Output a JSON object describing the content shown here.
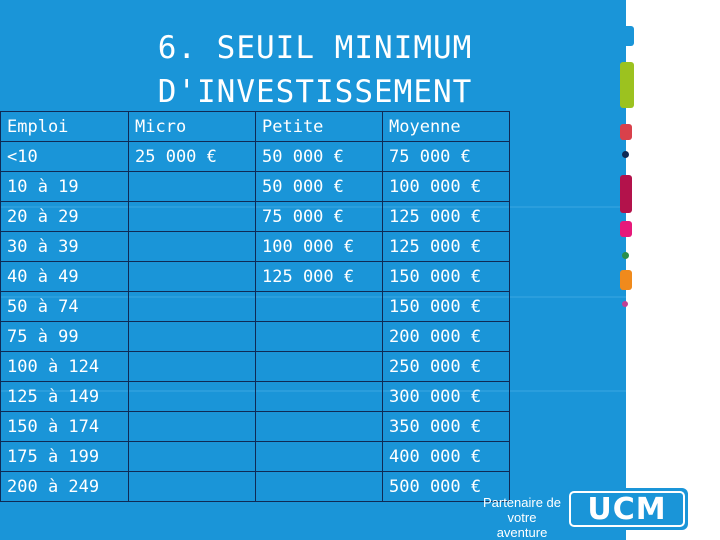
{
  "title_line1": "6. SEUIL MINIMUM",
  "title_line2": "D'INVESTISSEMENT",
  "table": {
    "headers": [
      "Emploi",
      "Micro",
      "Petite",
      "Moyenne"
    ],
    "rows": [
      [
        "<10",
        "25 000 €",
        "50 000 €",
        "75 000 €"
      ],
      [
        "10 à 19",
        "",
        "50 000 €",
        "100 000 €"
      ],
      [
        "20 à 29",
        "",
        "75 000 €",
        "125 000 €"
      ],
      [
        "30 à 39",
        "",
        "100 000 €",
        "125 000 €"
      ],
      [
        "40 à 49",
        "",
        "125 000 €",
        "150 000 €"
      ],
      [
        "50 à 74",
        "",
        "",
        "150 000 €"
      ],
      [
        "75 à 99",
        "",
        "",
        "200 000 €"
      ],
      [
        "100 à 124",
        "",
        "",
        "250 000 €"
      ],
      [
        "125 à 149",
        "",
        "",
        "300 000 €"
      ],
      [
        "150 à 174",
        "",
        "",
        "350 000 €"
      ],
      [
        "175 à 199",
        "",
        "",
        "400 000 €"
      ],
      [
        "200 à 249",
        "",
        "",
        "500 000 €"
      ]
    ]
  },
  "logo": {
    "tagline": "Partenaire de votre aventure",
    "name": "UCM"
  },
  "colors": {
    "background": "#1a95d8",
    "swatches": [
      "#1a95d8",
      "#9cc21f",
      "#d9414b",
      "#b3124b",
      "#e6197a",
      "#f08a1c",
      "#c23f94"
    ]
  }
}
